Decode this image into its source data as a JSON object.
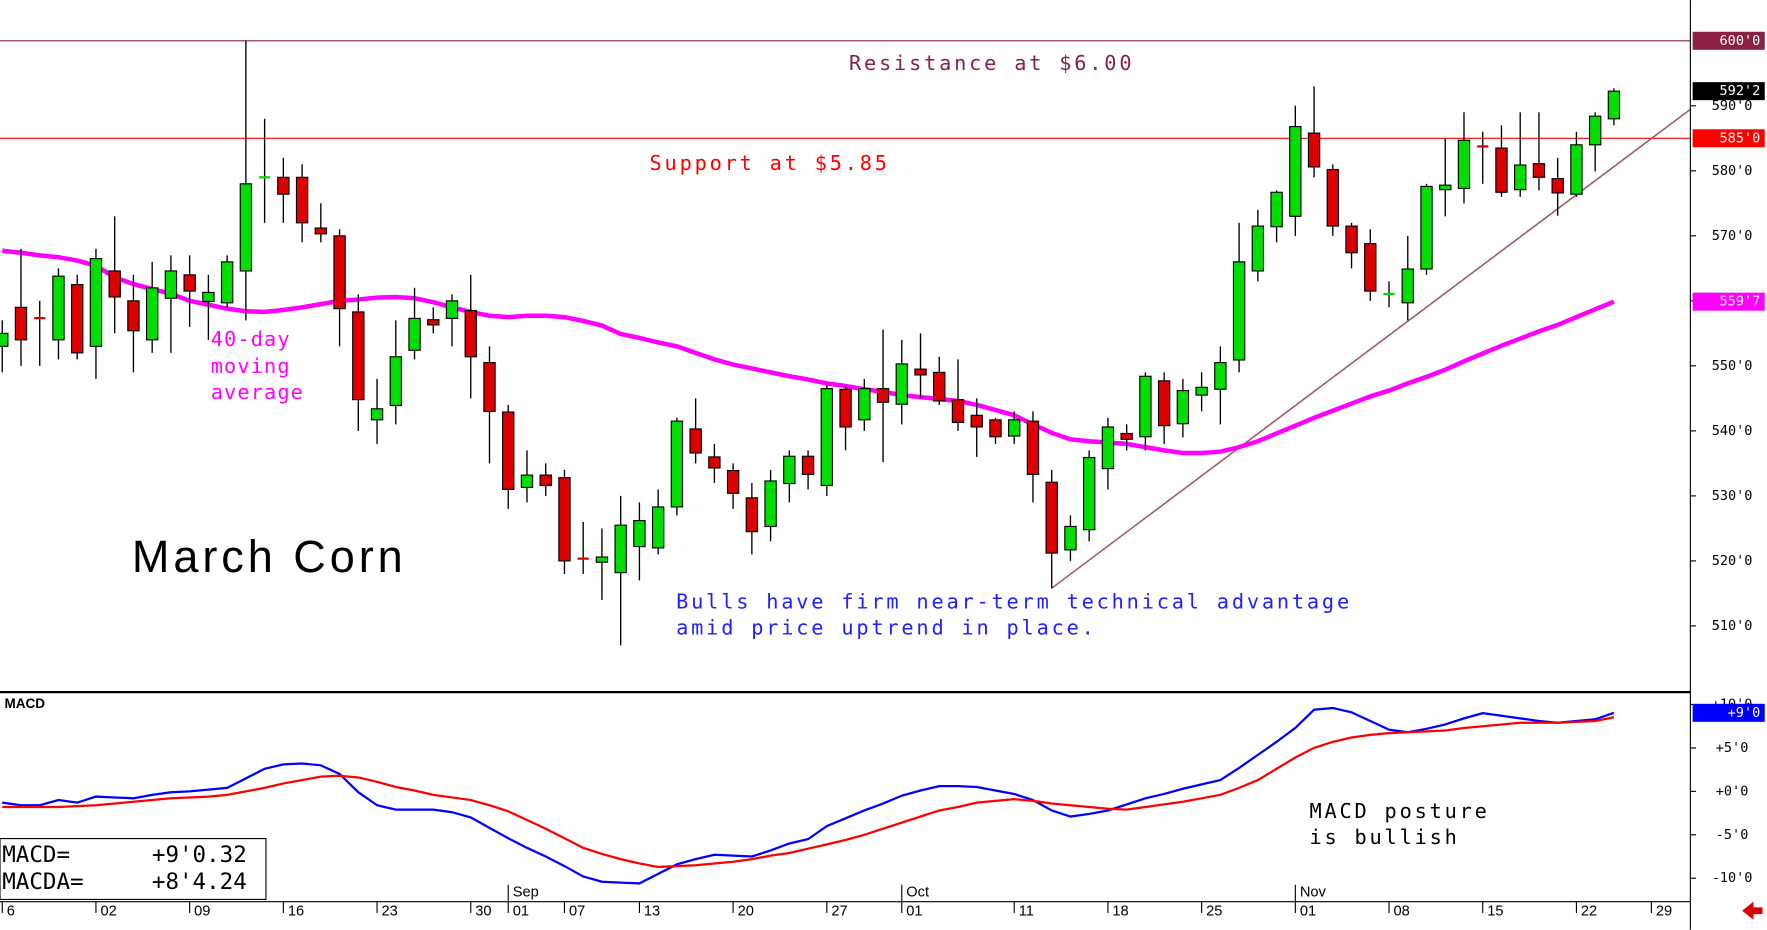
{
  "chart_data": [
    {
      "type": "candlestick",
      "title": "March Corn",
      "up_color": "#00dd00",
      "down_color": "#dd0000",
      "open": [
        553,
        559,
        557.4,
        554,
        562.5,
        553,
        564.6,
        560,
        554,
        560.4,
        564,
        559.9,
        559.7,
        564.6,
        578.9,
        579,
        579,
        571.2,
        570,
        558.3,
        541.7,
        543.9,
        552.4,
        557.1,
        557.3,
        558.5,
        550.5,
        542.9,
        531.3,
        533.2,
        532.8,
        520.4,
        519.8,
        518.2,
        522.2,
        522,
        528.3,
        540.3,
        536,
        533.9,
        529.7,
        525.3,
        531.9,
        536.1,
        531.6,
        546.4,
        541.7,
        546.5,
        544.1,
        549.5,
        549,
        544.8,
        542.4,
        541.7,
        539.2,
        541.5,
        532.1,
        521.7,
        524.8,
        534.2,
        539.6,
        539.1,
        547.7,
        541.1,
        545.5,
        546.4,
        550.9,
        564.6,
        571.4,
        573,
        585.8,
        580.2,
        571.5,
        568.8,
        561,
        559.7,
        564.9,
        577.1,
        577.3,
        583.8,
        583.5,
        577.1,
        581.1,
        578.8,
        576.4,
        584,
        588
      ],
      "high": [
        557,
        568,
        560,
        565,
        564,
        568,
        573,
        564,
        566,
        567,
        567,
        564,
        567,
        600,
        588,
        582,
        581,
        575,
        571,
        561,
        548,
        557,
        562,
        559,
        561,
        564,
        553,
        544,
        537,
        535,
        534,
        526,
        525,
        530,
        529,
        531,
        542,
        545,
        538,
        535,
        532,
        534,
        537,
        537,
        547,
        547,
        548,
        555.6,
        554,
        555,
        551.4,
        551,
        545,
        542,
        543,
        543,
        534,
        527,
        537,
        542,
        541,
        549,
        549,
        548,
        549,
        553,
        572,
        574,
        577,
        590,
        593,
        581,
        572,
        571,
        563,
        570,
        578,
        585,
        589,
        586,
        587,
        589,
        589,
        582,
        586,
        589,
        592.7
      ],
      "low": [
        549,
        550,
        550,
        551,
        551,
        548,
        555,
        549,
        552,
        552,
        556,
        554,
        559,
        557,
        572,
        572,
        569,
        569,
        553,
        540,
        538,
        541,
        551,
        555,
        553,
        545,
        535,
        528,
        529,
        530,
        518,
        518,
        514,
        507,
        517,
        521,
        527,
        535,
        532,
        528,
        521,
        523,
        529,
        531,
        530,
        537,
        540,
        535.2,
        541,
        545,
        544,
        540,
        536,
        538,
        538,
        529,
        515.8,
        520,
        523,
        531,
        537,
        537,
        538,
        539,
        543,
        541,
        549,
        563,
        569,
        570,
        579,
        570,
        565,
        560,
        559,
        557,
        564,
        573,
        575,
        578,
        576,
        576,
        577,
        573.1,
        576,
        579.9,
        587
      ],
      "close": [
        555,
        554,
        557.3,
        563.8,
        552,
        566.5,
        560.6,
        555.4,
        562,
        564.6,
        561.5,
        561.3,
        566,
        578,
        579.1,
        576.4,
        572,
        570.3,
        558.8,
        544.8,
        543.4,
        551.4,
        557.3,
        556.3,
        560,
        551.4,
        543,
        531,
        533.2,
        531.6,
        520,
        520.3,
        520.6,
        525.5,
        526.2,
        528.3,
        541.5,
        536.6,
        534.3,
        530.4,
        524.5,
        532.3,
        536.1,
        533.3,
        546.5,
        540.6,
        546.5,
        544.4,
        550.3,
        548.6,
        544.6,
        541.3,
        540.6,
        539.1,
        541.7,
        533.3,
        521.2,
        525.3,
        535.9,
        540.6,
        538.7,
        548.4,
        540.8,
        546.2,
        546.7,
        550.5,
        566,
        571.5,
        576.7,
        586.8,
        580.6,
        571.5,
        567.4,
        561.5,
        561.1,
        564.9,
        577.6,
        577.8,
        584.7,
        583.7,
        576.7,
        580.9,
        579,
        576.6,
        584,
        588.4,
        592.25
      ],
      "last_label": "592'2",
      "ma": {
        "label": [
          "40-day",
          "moving",
          "average"
        ],
        "color": "#ff00ff",
        "last_label": "559'7",
        "values": [
          567.7,
          567.4,
          567.0,
          566.7,
          566.2,
          565.4,
          563.6,
          562.6,
          561.8,
          561.1,
          560.0,
          559.4,
          558.8,
          558.4,
          558.3,
          558.6,
          559.0,
          559.5,
          560.0,
          560.2,
          560.5,
          560.6,
          560.4,
          559.8,
          559.0,
          558.3,
          557.7,
          557.5,
          557.7,
          557.7,
          557.5,
          556.9,
          556.2,
          554.9,
          554.3,
          553.6,
          553.0,
          552.0,
          551.0,
          550.2,
          549.6,
          549.0,
          548.4,
          547.9,
          547.3,
          546.9,
          546.4,
          546.0,
          545.5,
          545.2,
          544.9,
          544.6,
          544.0,
          543.2,
          542.4,
          541.0,
          539.7,
          538.7,
          538.4,
          538.2,
          538.0,
          537.5,
          537.0,
          536.6,
          536.6,
          536.8,
          537.5,
          538.4,
          539.6,
          540.8,
          542.0,
          543.1,
          544.2,
          545.3,
          546.2,
          547.3,
          548.3,
          549.4,
          550.7,
          551.9,
          553.1,
          554.2,
          555.3,
          556.3,
          557.5,
          558.7,
          559.875
        ]
      },
      "hlines": [
        {
          "value": 600,
          "label": "Resistance at $6.00",
          "color": "#8b2040",
          "axis_label": "600'0"
        },
        {
          "value": 585,
          "label": "Support at $5.85",
          "color": "#ff0000",
          "axis_label": "585'0"
        }
      ],
      "trendline": {
        "x": [
          56,
          90.1
        ],
        "values": [
          515.8,
          589.5
        ],
        "color": "#a05060"
      },
      "notes": [
        "Bulls have firm near-term technical advantage",
        "amid price uptrend in place."
      ],
      "ylim": [
        500,
        606.25
      ],
      "yticks": [
        {
          "value": 510,
          "label": "510'0"
        },
        {
          "value": 520,
          "label": "520'0"
        },
        {
          "value": 530,
          "label": "530'0"
        },
        {
          "value": 540,
          "label": "540'0"
        },
        {
          "value": 550,
          "label": "550'0"
        },
        {
          "value": 560,
          "label": "560'0"
        },
        {
          "value": 570,
          "label": "570'0"
        },
        {
          "value": 580,
          "label": "580'0"
        },
        {
          "value": 590,
          "label": "590'0"
        }
      ],
      "xlim": [
        -0.12,
        90.08
      ],
      "xticks": [
        {
          "value": 0,
          "label": "6"
        },
        {
          "value": 5,
          "label": "02"
        },
        {
          "value": 10,
          "label": "09"
        },
        {
          "value": 15,
          "label": "16"
        },
        {
          "value": 20,
          "label": "23"
        },
        {
          "value": 25,
          "label": "30"
        },
        {
          "value": 27,
          "label": "01"
        },
        {
          "value": 30,
          "label": "07"
        },
        {
          "value": 34,
          "label": "13"
        },
        {
          "value": 39,
          "label": "20"
        },
        {
          "value": 44,
          "label": "27"
        },
        {
          "value": 48,
          "label": "01"
        },
        {
          "value": 54,
          "label": "11"
        },
        {
          "value": 59,
          "label": "18"
        },
        {
          "value": 64,
          "label": "25"
        },
        {
          "value": 69,
          "label": "01"
        },
        {
          "value": 74,
          "label": "08"
        },
        {
          "value": 79,
          "label": "15"
        },
        {
          "value": 84,
          "label": "22"
        },
        {
          "value": 88,
          "label": "29"
        }
      ],
      "month_ticks": [
        {
          "value": 27,
          "label": "Sep"
        },
        {
          "value": 48,
          "label": "Oct"
        },
        {
          "value": 69,
          "label": "Nov"
        }
      ]
    },
    {
      "type": "line",
      "title": "MACD",
      "series": [
        {
          "color": "#0000ff",
          "last_label": "+9'0",
          "values": [
            -1.3,
            -1.6,
            -1.6,
            -1.0,
            -1.3,
            -0.6,
            -0.7,
            -0.8,
            -0.4,
            -0.1,
            0.0,
            0.2,
            0.4,
            1.5,
            2.6,
            3.1,
            3.2,
            3.0,
            2.0,
            -0.1,
            -1.6,
            -2.1,
            -2.1,
            -2.1,
            -2.4,
            -3.0,
            -4.2,
            -5.4,
            -6.5,
            -7.5,
            -8.6,
            -9.8,
            -10.4,
            -10.5,
            -10.6,
            -9.5,
            -8.4,
            -7.8,
            -7.3,
            -7.4,
            -7.5,
            -6.8,
            -6.0,
            -5.5,
            -4.0,
            -3.1,
            -2.2,
            -1.4,
            -0.5,
            0.1,
            0.6,
            0.6,
            0.5,
            0.1,
            -0.3,
            -1.0,
            -2.2,
            -2.9,
            -2.6,
            -2.2,
            -1.5,
            -0.8,
            -0.3,
            0.3,
            0.8,
            1.3,
            2.7,
            4.2,
            5.7,
            7.3,
            9.4,
            9.6,
            9.1,
            8.1,
            7.1,
            6.8,
            7.2,
            7.7,
            8.4,
            9.0,
            8.7,
            8.4,
            8.1,
            7.9,
            8.1,
            8.3,
            9.04
          ]
        },
        {
          "color": "#ff0000",
          "values": [
            -1.8,
            -1.8,
            -1.8,
            -1.8,
            -1.7,
            -1.6,
            -1.4,
            -1.2,
            -1.0,
            -0.8,
            -0.7,
            -0.6,
            -0.4,
            0.0,
            0.4,
            0.9,
            1.3,
            1.7,
            1.8,
            1.6,
            1.1,
            0.5,
            0.1,
            -0.4,
            -0.7,
            -1.0,
            -1.6,
            -2.3,
            -3.3,
            -4.3,
            -5.4,
            -6.5,
            -7.2,
            -7.8,
            -8.3,
            -8.7,
            -8.6,
            -8.5,
            -8.3,
            -8.1,
            -7.8,
            -7.4,
            -7.1,
            -6.6,
            -6.1,
            -5.6,
            -5.0,
            -4.3,
            -3.6,
            -2.9,
            -2.2,
            -1.8,
            -1.3,
            -1.1,
            -0.9,
            -1.1,
            -1.4,
            -1.6,
            -1.8,
            -2.0,
            -2.1,
            -1.8,
            -1.5,
            -1.2,
            -0.8,
            -0.4,
            0.4,
            1.3,
            2.6,
            3.9,
            5.0,
            5.7,
            6.2,
            6.5,
            6.7,
            6.8,
            6.9,
            7.0,
            7.3,
            7.5,
            7.7,
            7.9,
            7.9,
            7.9,
            8.0,
            8.1,
            8.53
          ]
        }
      ],
      "readout": [
        {
          "label": "MACD=",
          "value": "+9'0.32"
        },
        {
          "label": "MACDA=",
          "value": "+8'4.24"
        }
      ],
      "notes": [
        "MACD posture",
        "is bullish"
      ],
      "ylim": [
        -12.7,
        11.3
      ],
      "yticks": [
        {
          "value": 10,
          "label": "+10'0"
        },
        {
          "value": 5,
          "label": "+5'0"
        },
        {
          "value": 0,
          "label": "+0'0"
        },
        {
          "value": -5,
          "label": "-5'0"
        },
        {
          "value": -10,
          "label": "-10'0"
        }
      ]
    }
  ]
}
